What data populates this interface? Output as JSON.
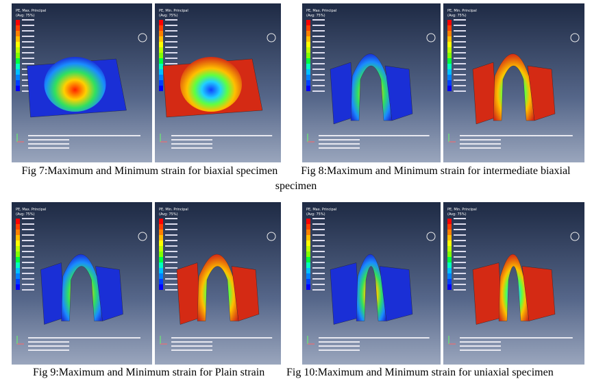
{
  "figures": [
    {
      "caption": "Fig 7:Maximum and Minimum strain for biaxial specimen",
      "panels": [
        {
          "legend_title": "PE, Max. Principal",
          "legend_avg": "(Avg: 75%)"
        },
        {
          "legend_title": "PE, Min. Principal",
          "legend_avg": "(Avg: 75%)"
        }
      ]
    },
    {
      "caption": "Fig 8:Maximum and Minimum strain for intermediate biaxial specimen",
      "panels": [
        {
          "legend_title": "PE, Max. Principal",
          "legend_avg": "(Avg: 75%)"
        },
        {
          "legend_title": "PE, Min. Principal",
          "legend_avg": "(Avg: 75%)"
        }
      ]
    },
    {
      "caption": "Fig 9:Maximum and Minimum strain for Plain strain",
      "panels": [
        {
          "legend_title": "PE, Max. Principal",
          "legend_avg": "(Avg: 75%)"
        },
        {
          "legend_title": "PE, Min. Principal",
          "legend_avg": "(Avg: 75%)"
        }
      ]
    },
    {
      "caption": "Fig 10:Maximum and Minimum strain for uniaxial specimen",
      "panels": [
        {
          "legend_title": "PE, Max. Principal",
          "legend_avg": "(Avg: 75%)"
        },
        {
          "legend_title": "PE, Min. Principal",
          "legend_avg": "(Avg: 75%)"
        }
      ]
    }
  ]
}
